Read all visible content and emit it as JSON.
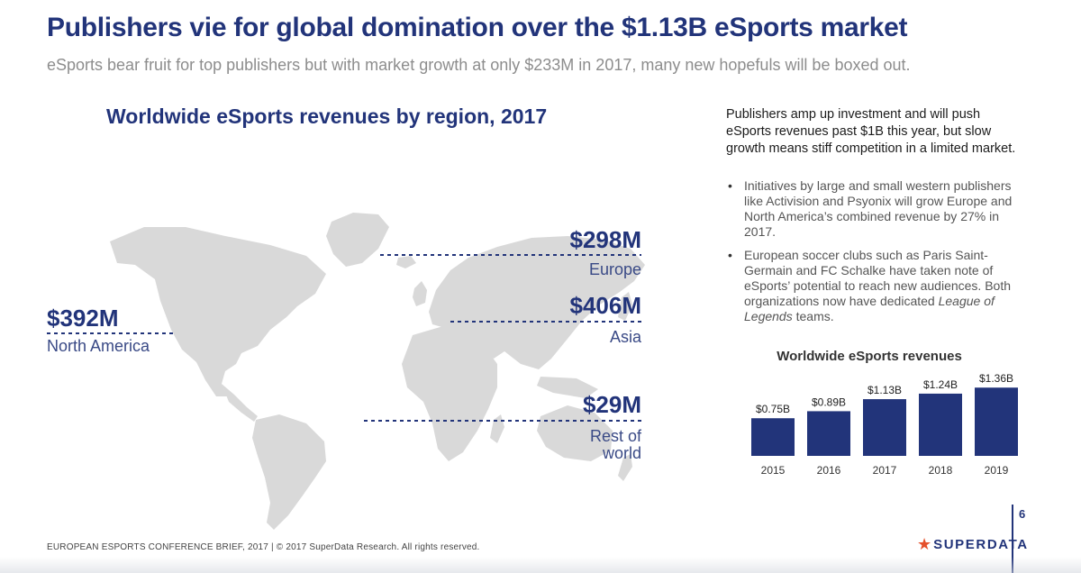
{
  "header": {
    "title": "Publishers vie for global domination over the $1.13B eSports market",
    "subtitle": "eSports bear fruit for top publishers but with market growth at only $233M in 2017, many new hopefuls will be boxed out."
  },
  "map": {
    "title": "Worldwide eSports revenues by region, 2017",
    "regions": [
      {
        "value": "$392M",
        "name": "North America"
      },
      {
        "value": "$298M",
        "name": "Europe"
      },
      {
        "value": "$406M",
        "name": "Asia"
      },
      {
        "value": "$29M",
        "name": "Rest of world"
      }
    ],
    "land_color": "#d9d9d9",
    "leader_color": "#22347a"
  },
  "commentary": {
    "intro": "Publishers amp up investment and will push eSports revenues past $1B this year, but slow growth means stiff competition in a limited market.",
    "bullet_1": "Initiatives by large and small western publishers like Activision and Psyonix will grow Europe and North America’s combined revenue by 27% in 2017.",
    "bullet_2_pre": "European soccer clubs such as Paris Saint-Germain and FC Schalke have taken note of eSports’ potential to reach new audiences. Both organizations now have dedicated ",
    "bullet_2_em": "League of Legends",
    "bullet_2_post": " teams."
  },
  "chart_data": {
    "type": "bar",
    "title": "Worldwide eSports revenues",
    "categories": [
      "2015",
      "2016",
      "2017",
      "2018",
      "2019"
    ],
    "values": [
      0.75,
      0.89,
      1.13,
      1.24,
      1.36
    ],
    "data_labels": [
      "$0.75B",
      "$0.89B",
      "$1.13B",
      "$1.24B",
      "$1.36B"
    ],
    "ylim": [
      0,
      1.4
    ],
    "grid": false,
    "bar_color": "#22347a"
  },
  "footer": {
    "text": "EUROPEAN ESPORTS CONFERENCE BRIEF, 2017 | © 2017 SuperData Research. All rights reserved.",
    "page_number": "6",
    "logo_text": "SUPERDATA",
    "logo_icon": "star-icon",
    "logo_color": "#e5502b"
  }
}
